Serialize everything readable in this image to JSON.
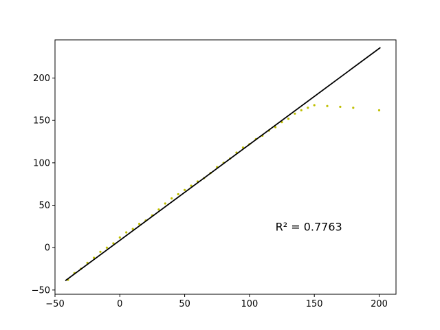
{
  "chart_data": {
    "type": "scatter",
    "title": "",
    "xlabel": "",
    "ylabel": "",
    "xlim": [
      -50,
      213
    ],
    "ylim": [
      -55,
      245
    ],
    "xticks": [
      -50,
      0,
      50,
      100,
      150,
      200
    ],
    "yticks": [
      -50,
      0,
      50,
      100,
      150,
      200
    ],
    "grid": false,
    "legend": "none",
    "point_color": "#bfbf00",
    "line_color": "#000000",
    "annotation": {
      "text": "R² = 0.7763",
      "x": 120,
      "y": 20
    },
    "fit_line": {
      "x": [
        -42,
        201
      ],
      "y": [
        -39,
        236
      ]
    },
    "series": [
      {
        "x": [
          -40,
          -35,
          -30,
          -25,
          -20,
          -15,
          -10,
          -5,
          0,
          5,
          10,
          15,
          20,
          25,
          30,
          35,
          40,
          45,
          50,
          55,
          60,
          65,
          70,
          75,
          80,
          85,
          90,
          95,
          100,
          105,
          110,
          115,
          120,
          125,
          130,
          135,
          140,
          145,
          150,
          160,
          170,
          180,
          200
        ],
        "y": [
          -38,
          -30,
          -25,
          -18,
          -12,
          -5,
          0,
          5,
          12,
          18,
          22,
          28,
          32,
          38,
          45,
          52,
          58,
          63,
          68,
          73,
          78,
          82,
          88,
          95,
          100,
          105,
          112,
          118,
          122,
          128,
          132,
          138,
          142,
          148,
          152,
          158,
          162,
          165,
          168,
          167,
          166,
          165,
          162
        ]
      }
    ]
  }
}
